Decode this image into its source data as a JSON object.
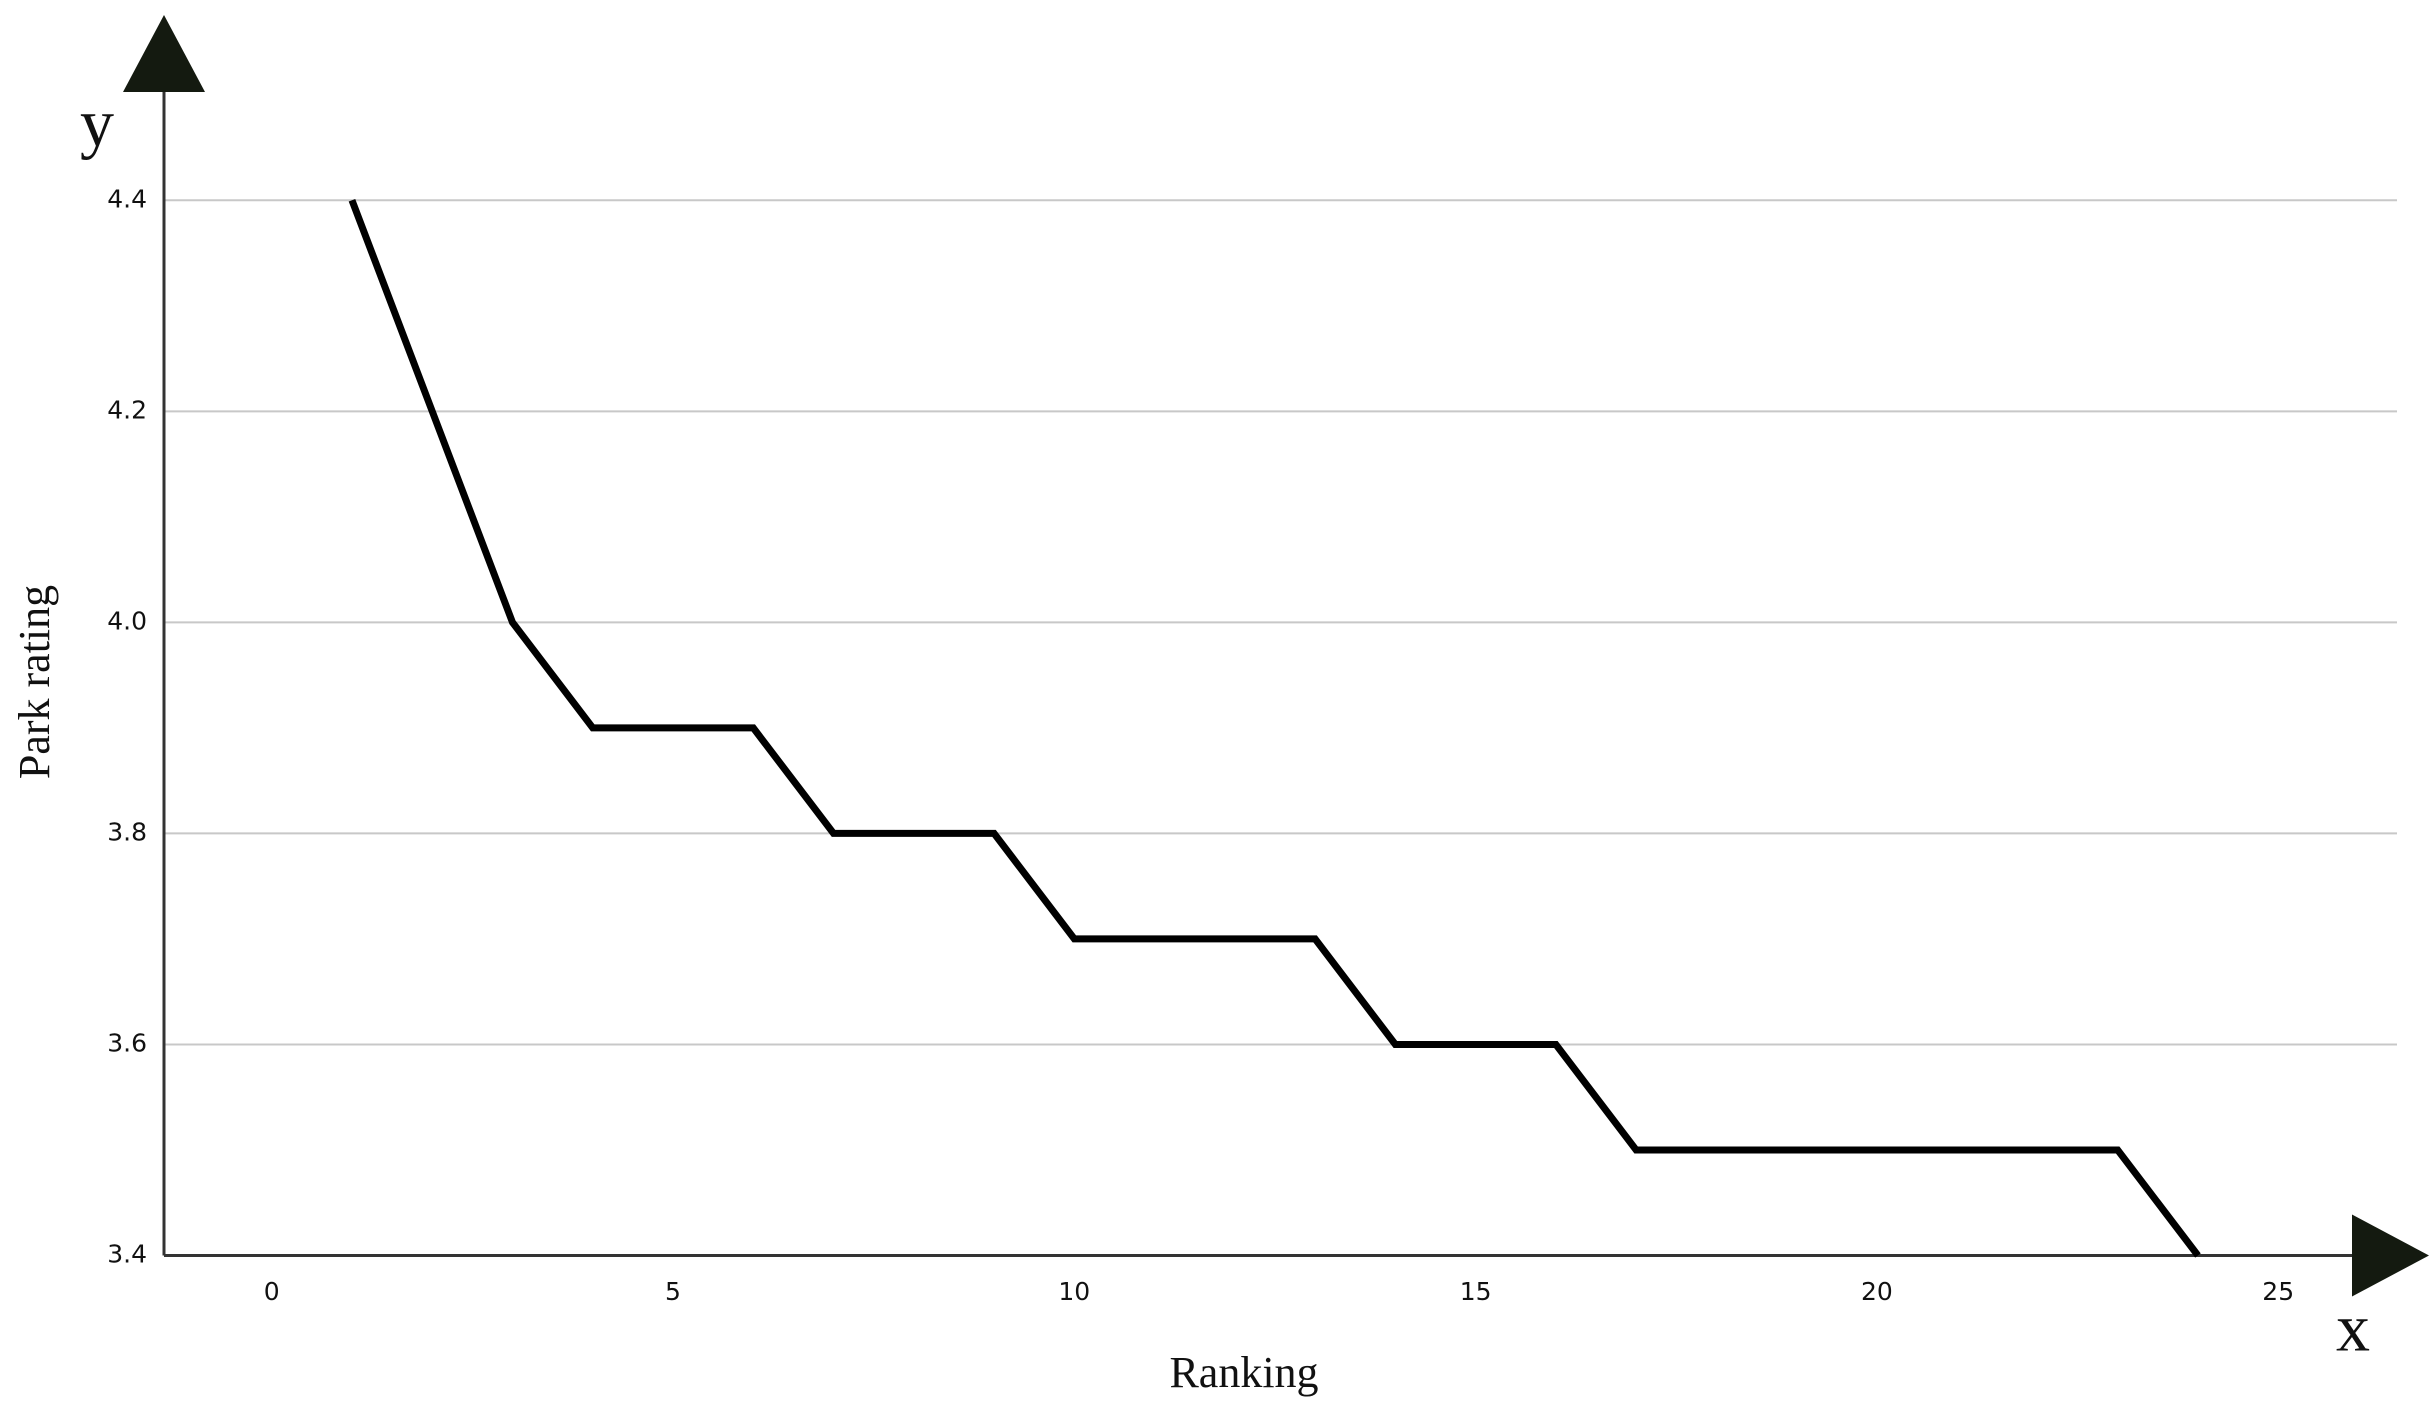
{
  "chart_data": {
    "type": "line",
    "x_symbol": "x",
    "y_symbol": "y",
    "x_label": "Ranking",
    "y_label": "Park rating",
    "x": [
      1,
      2,
      3,
      4,
      5,
      6,
      7,
      8,
      9,
      10,
      11,
      12,
      13,
      14,
      15,
      16,
      17,
      18,
      19,
      20,
      21,
      22,
      23,
      24
    ],
    "series": [
      {
        "color": "#000000",
        "values": [
          4.4,
          4.2,
          4.0,
          3.9,
          3.9,
          3.9,
          3.8,
          3.8,
          3.8,
          3.7,
          3.7,
          3.7,
          3.7,
          3.6,
          3.6,
          3.6,
          3.5,
          3.5,
          3.5,
          3.5,
          3.5,
          3.5,
          3.5,
          3.4
        ]
      }
    ],
    "xlim": [
      -1.342,
      26.48
    ],
    "ylim": [
      3.4,
      4.575
    ],
    "xticks": [
      0,
      5,
      10,
      15,
      20,
      25
    ],
    "yticks": [
      3.4,
      3.6,
      3.8,
      {
        "value": 4,
        "label": "4.0"
      },
      4.2,
      4.4
    ],
    "grid": true,
    "grid_color": "#c8c8c8"
  }
}
